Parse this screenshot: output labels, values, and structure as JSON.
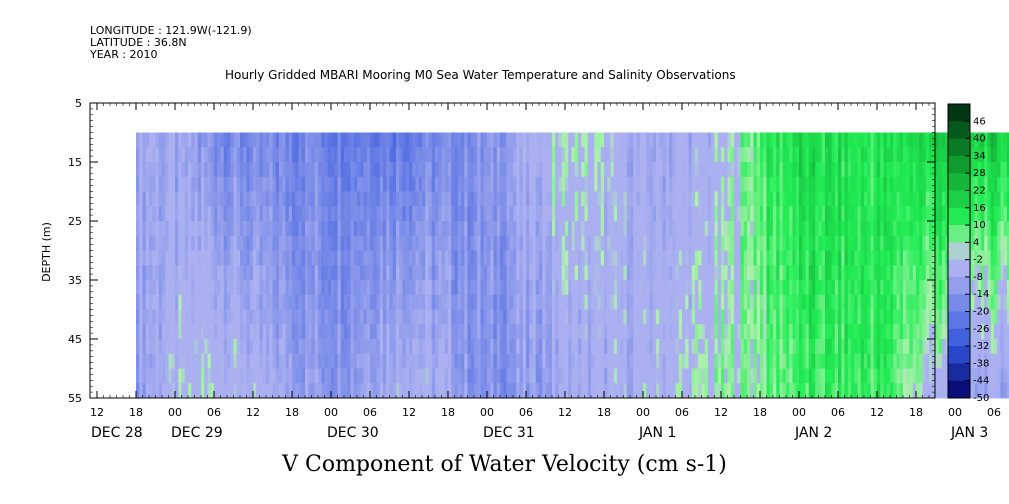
{
  "header": {
    "longitude": "LONGITUDE : 121.9W(-121.9)",
    "latitude": "LATITUDE : 36.8N",
    "year": "YEAR : 2010"
  },
  "colors": {
    "neg_dark": "#000066",
    "neg_mid": "#3355dd",
    "neg_light": "#aab0f0",
    "pos_light": "#b0f0b0",
    "pos_mid": "#22ee55",
    "pos_dark": "#003311"
  },
  "chart_data": {
    "type": "heatmap",
    "title": "Hourly Gridded MBARI Mooring M0 Sea Water Temperature and Salinity Observations",
    "xlabel": "V Component of Water Velocity (cm s-1)",
    "ylabel": "DEPTH (m)",
    "x_range": [
      "2010-12-28 12:00",
      "2011-01-03 24:00"
    ],
    "data_start": "2010-12-28 18:00",
    "y_range": [
      5,
      55
    ],
    "y_ticks": [
      5,
      15,
      25,
      35,
      45,
      55
    ],
    "y_ticklabels": [
      "5",
      "15",
      "25",
      "35",
      "45",
      "55"
    ],
    "hour_ticks": [
      "12",
      "18",
      "00",
      "06",
      "12",
      "18",
      "00",
      "06",
      "12",
      "18",
      "00",
      "06",
      "12",
      "18",
      "00",
      "06",
      "12",
      "18",
      "00",
      "06",
      "12",
      "18",
      "00",
      "06",
      "12",
      "18",
      "00",
      "06",
      "12",
      "18"
    ],
    "day_labels": [
      "DEC 28",
      "DEC 29",
      "DEC 30",
      "DEC 31",
      "JAN  1",
      "JAN  2",
      "JAN  3"
    ],
    "colorbar": {
      "min": -50,
      "max": 50,
      "levels": [
        -50,
        -44,
        -38,
        -32,
        -26,
        -20,
        -14,
        -8,
        -2,
        4,
        10,
        16,
        22,
        28,
        34,
        40,
        46
      ],
      "labels": [
        "-50",
        "-44",
        "-38",
        "-32",
        "-26",
        "-20",
        "-14",
        "-8",
        "-2",
        "4",
        "10",
        "16",
        "22",
        "28",
        "34",
        "40",
        "46"
      ]
    },
    "profile_depths": [
      10,
      55
    ],
    "v_profile_time_hours": [
      6,
      12,
      18,
      24,
      36,
      48,
      60,
      72,
      84,
      96,
      102,
      108,
      120,
      132,
      144,
      156,
      168,
      180,
      192,
      204,
      216,
      228
    ],
    "v_profile_top": [
      -6,
      -10,
      -15,
      -18,
      -18,
      -20,
      -14,
      2,
      -8,
      -4,
      12,
      16,
      14,
      20,
      20,
      24,
      28,
      32,
      36,
      30,
      22,
      16
    ],
    "v_profile_bottom": [
      -10,
      -4,
      2,
      -6,
      -12,
      -2,
      -16,
      -8,
      -4,
      2,
      4,
      10,
      12,
      -8,
      -10,
      6,
      18,
      28,
      40,
      34,
      14,
      20
    ]
  }
}
